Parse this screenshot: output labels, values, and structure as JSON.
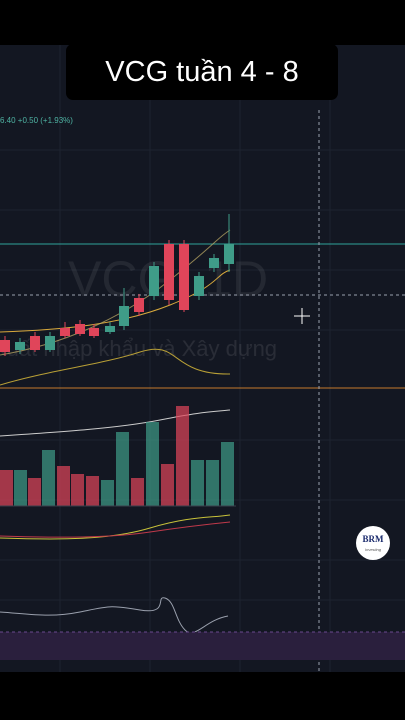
{
  "title": "VCG tuần 4 - 8",
  "legend": "6.40 +0.50 (+1.93%)",
  "watermark": {
    "symbol": "VCG, 1D",
    "company": "Xuất nhập khẩu và Xây dựng"
  },
  "logo": {
    "name": "BRM",
    "tagline": "Investing"
  }
}
